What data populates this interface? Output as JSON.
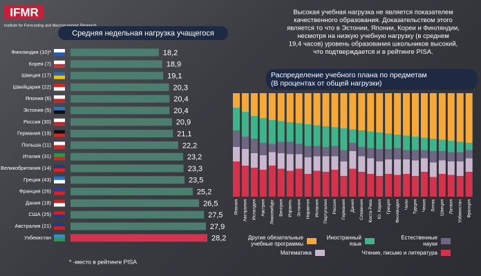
{
  "logo": {
    "name": "IFMR",
    "subtitle": "Institute for Forecasting and Macroeconomic Research"
  },
  "intro_lines": [
    "Высокая учебная нагрузка не является показателем",
    "качественного образования. Доказательством этого",
    "является то что в Эстонии, Японии, Кореи и Финляндии,",
    "несмотря на низкую учебную нагрузку (в среднем",
    "19,4 часов) уровень образования школьников высокий,",
    "что подтверждается и в рейтинге PISA."
  ],
  "footnote": "* -место в рейтинге PISA",
  "chart_data": [
    {
      "type": "bar",
      "orientation": "horizontal",
      "title": "Средняя недельная нагрузка учащегося",
      "categories": [
        "Финляндия (10)*",
        "Корея (7)",
        "Швеция (17)",
        "Швейцария (22)",
        "Япония (6)",
        "Эстония (5)",
        "Россия (30)",
        "Германия (19)",
        "Польша (11)",
        "Италия (31)",
        "Великобритания (14)",
        "Греция (43)",
        "Франция (26)",
        "Дания (18)",
        "США (25)",
        "Австралия (21)",
        "Узбекистан"
      ],
      "values": [
        18.2,
        18.9,
        19.1,
        20.3,
        20.4,
        20.4,
        20.9,
        21.1,
        22.2,
        23.2,
        23.3,
        23.5,
        25.2,
        26.5,
        27.5,
        27.9,
        28.2
      ],
      "value_labels": [
        "18,2",
        "18,9",
        "19,1",
        "20,3",
        "20,4",
        "20,4",
        "20,9",
        "21,1",
        "22,2",
        "23,2",
        "23,3",
        "23,5",
        "25,2",
        "26,5",
        "27,5",
        "27,9",
        "28,2"
      ],
      "colors": [
        "#4d7d6e",
        "#4d7d6e",
        "#4d7d6e",
        "#4d7d6e",
        "#4d7d6e",
        "#4d7d6e",
        "#4d7d6e",
        "#4d7d6e",
        "#4d7d6e",
        "#4d7d6e",
        "#4d7d6e",
        "#4d7d6e",
        "#4d7d6e",
        "#4d7d6e",
        "#4d7d6e",
        "#4d7d6e",
        "#d3334d"
      ]
    },
    {
      "type": "stacked_bar",
      "title": "Распределение учебного плана по предметам",
      "subtitle": "(В процентах от общей нагрузки)",
      "ylim": [
        0,
        100
      ],
      "categories": [
        "Япония",
        "Австралия",
        "Исландия",
        "Австрия",
        "Люксембург",
        "Венгрия",
        "Израиль",
        "Эстония",
        "Норвегия",
        "Испания",
        "Португалия",
        "Россия",
        "Германия",
        "Дания",
        "Словения",
        "Коста Рика",
        "Ю. Корея",
        "Греция",
        "Финляндия",
        "Чили",
        "Турция",
        "Чехия",
        "Литва",
        "Швеция",
        "Латвия",
        "Узбекистан",
        "Франция"
      ],
      "series": [
        {
          "name": "Чтение, письмо и литература",
          "color": "#d3334d",
          "values": [
            34,
            30,
            28,
            26,
            30,
            27,
            25,
            27,
            22,
            25,
            24,
            26,
            20,
            27,
            24,
            22,
            20,
            22,
            21,
            22,
            20,
            24,
            19,
            22,
            21,
            20,
            24
          ]
        },
        {
          "name": "Математика",
          "color": "#c9b6cf",
          "values": [
            14,
            16,
            14,
            14,
            13,
            15,
            16,
            14,
            16,
            14,
            15,
            13,
            14,
            17,
            15,
            15,
            14,
            14,
            15,
            14,
            15,
            13,
            14,
            13,
            13,
            14,
            13
          ]
        },
        {
          "name": "Естественные науки",
          "color": "#6f6684",
          "values": [
            16,
            12,
            14,
            12,
            8,
            11,
            12,
            10,
            11,
            10,
            9,
            10,
            11,
            8,
            9,
            10,
            12,
            10,
            11,
            9,
            10,
            8,
            11,
            9,
            9,
            9,
            8
          ]
        },
        {
          "name": "Иностранный язык",
          "color": "#3fb38a",
          "values": [
            22,
            24,
            22,
            24,
            23,
            20,
            19,
            20,
            21,
            20,
            20,
            18,
            21,
            13,
            16,
            16,
            16,
            15,
            13,
            14,
            13,
            12,
            12,
            11,
            11,
            10,
            7
          ]
        },
        {
          "name": "Другие обязательные учебные программы",
          "color": "#f4a93a",
          "values": [
            14,
            18,
            22,
            24,
            26,
            27,
            28,
            29,
            30,
            31,
            32,
            33,
            34,
            35,
            36,
            37,
            38,
            39,
            40,
            41,
            42,
            43,
            44,
            45,
            46,
            47,
            48
          ]
        }
      ]
    }
  ]
}
